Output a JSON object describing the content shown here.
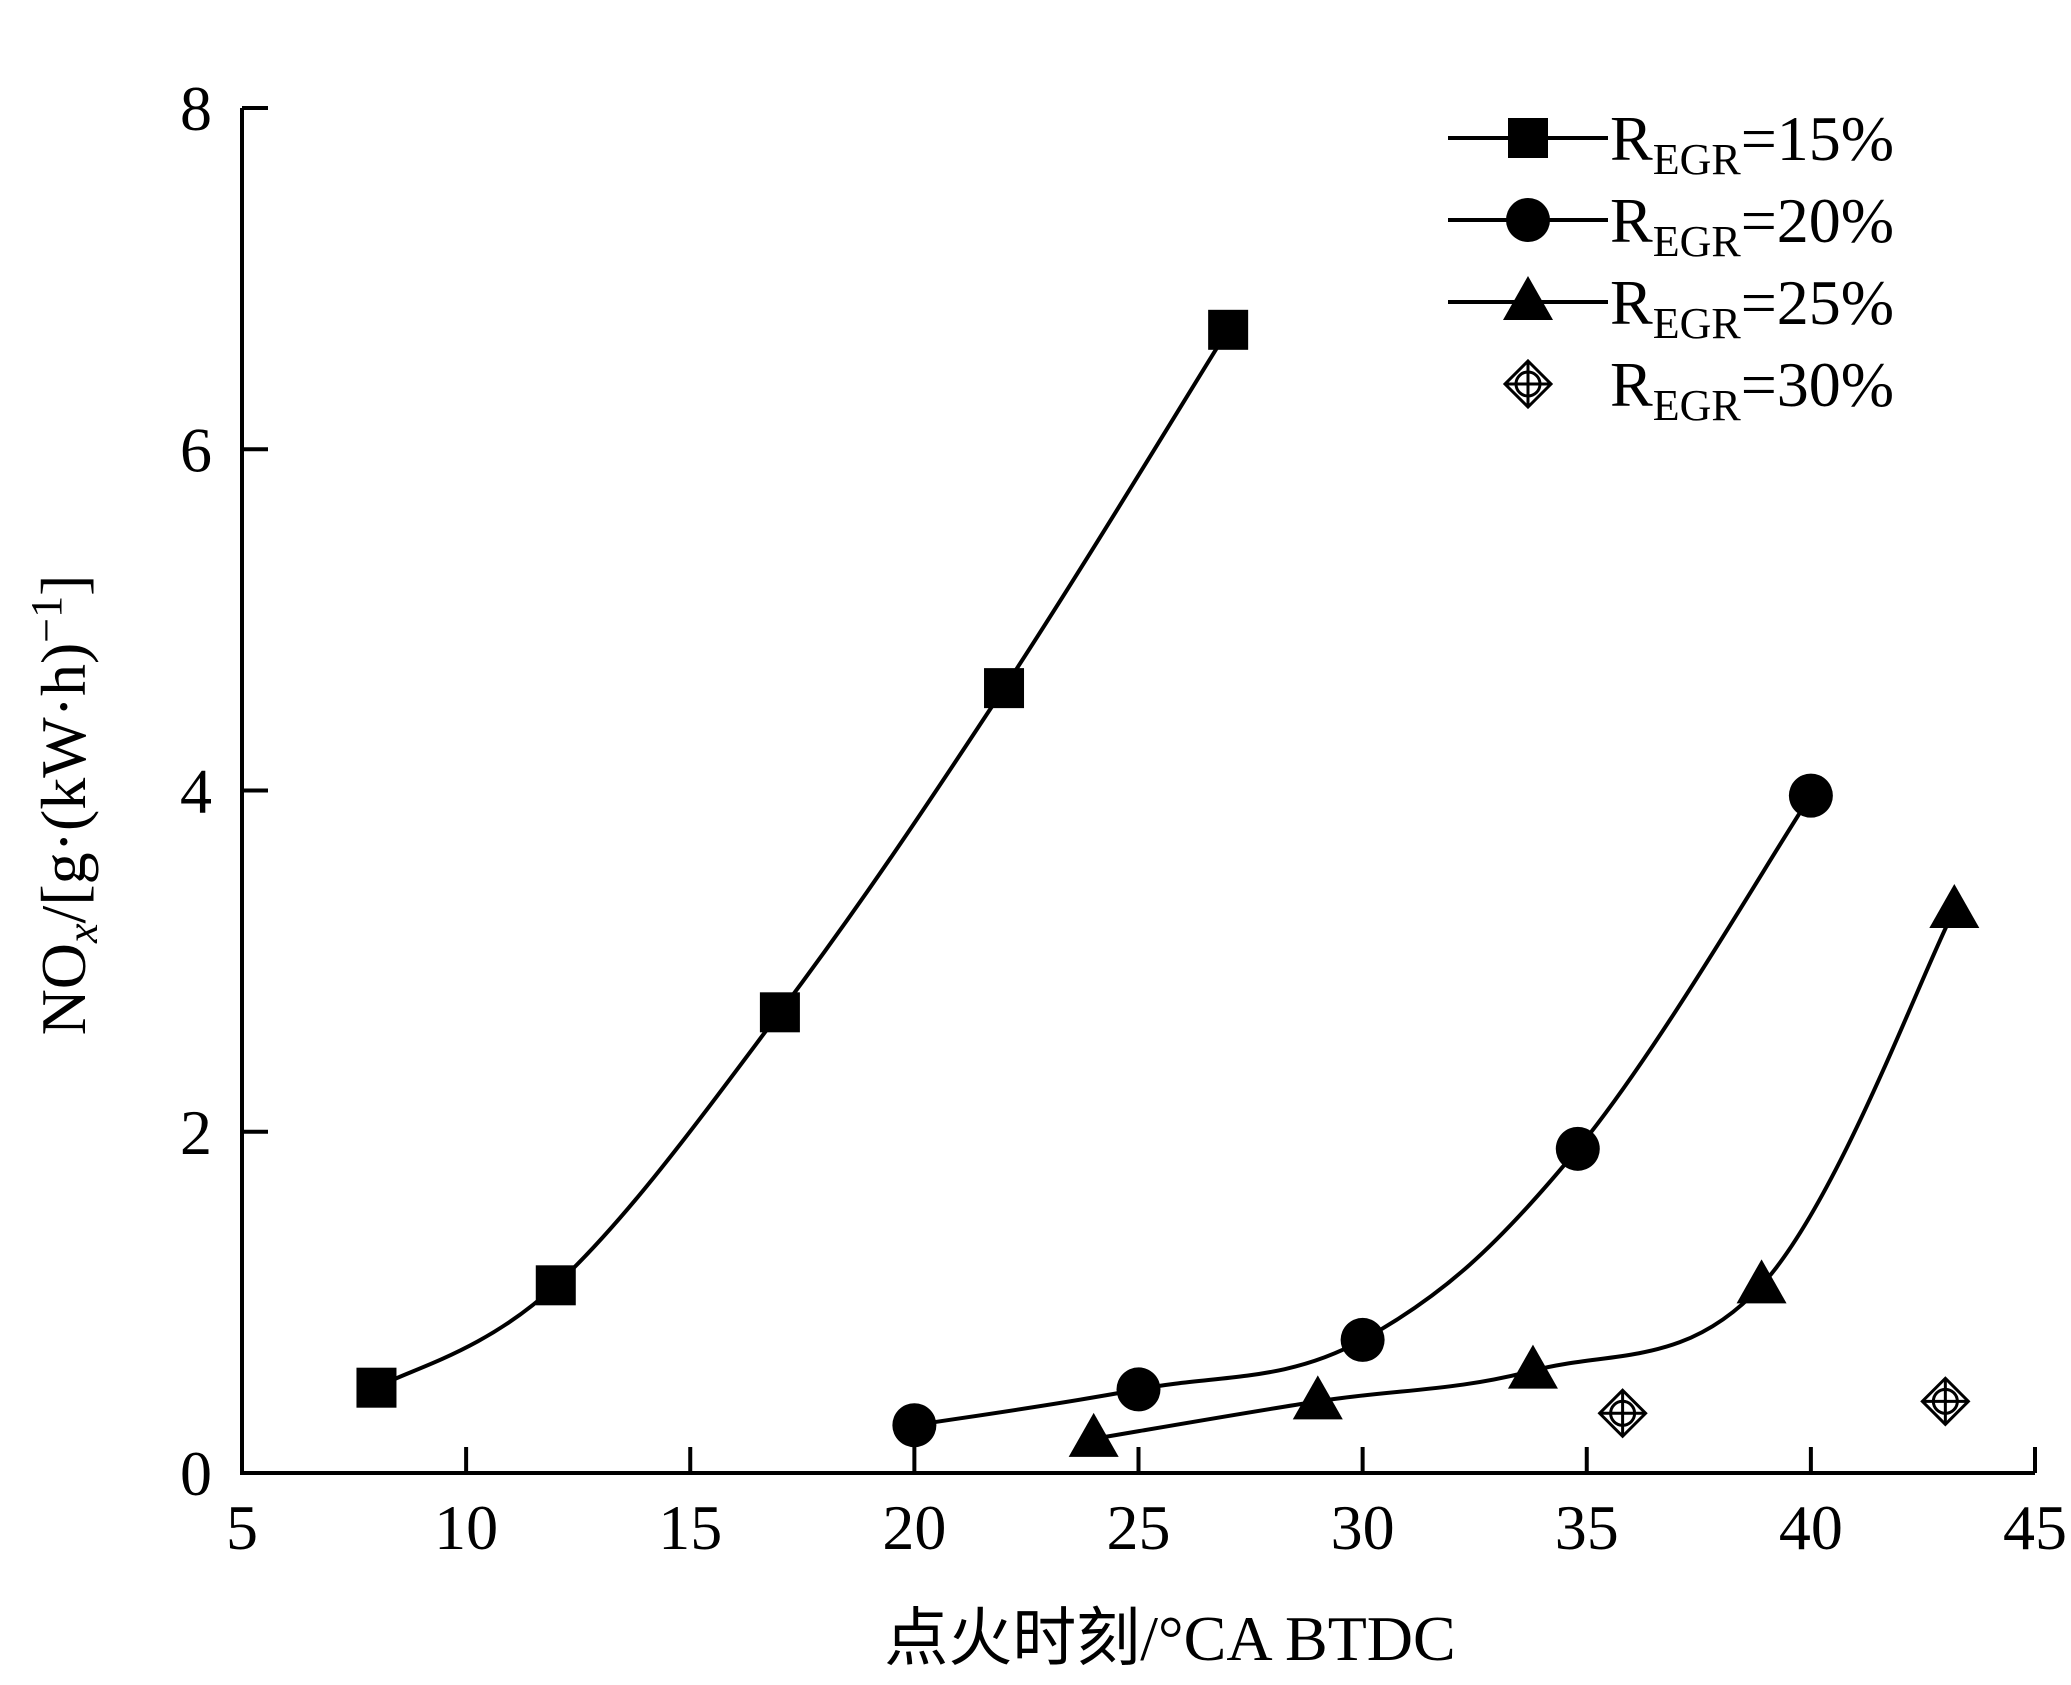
{
  "chart_data": {
    "type": "line",
    "xlabel": "点火时刻/°CA BTDC",
    "ylabel": "NOx/[g·(kW·h)−1]",
    "xlim": [
      5,
      45
    ],
    "ylim": [
      0,
      8
    ],
    "xticks": [
      5,
      10,
      15,
      20,
      25,
      30,
      35,
      40,
      45
    ],
    "yticks": [
      0,
      2,
      4,
      6,
      8
    ],
    "grid": false,
    "legend_position": "top-right",
    "series": [
      {
        "name": "REGR=15%",
        "marker": "square",
        "fit_line": true,
        "x": [
          8,
          12,
          17,
          22,
          27
        ],
        "y": [
          0.5,
          1.1,
          2.7,
          4.6,
          6.7
        ]
      },
      {
        "name": "REGR=20%",
        "marker": "circle",
        "fit_line": true,
        "x": [
          20,
          25,
          30,
          34.8,
          40
        ],
        "y": [
          0.28,
          0.49,
          0.78,
          1.9,
          3.97
        ]
      },
      {
        "name": "REGR=25%",
        "marker": "triangle",
        "fit_line": true,
        "x": [
          24,
          29,
          33.8,
          38.9,
          43.2
        ],
        "y": [
          0.2,
          0.42,
          0.6,
          1.1,
          3.3
        ]
      },
      {
        "name": "REGR=30%",
        "marker": "diamond-cross",
        "fit_line": false,
        "x": [
          35.8,
          43
        ],
        "y": [
          0.35,
          0.42
        ]
      }
    ]
  }
}
